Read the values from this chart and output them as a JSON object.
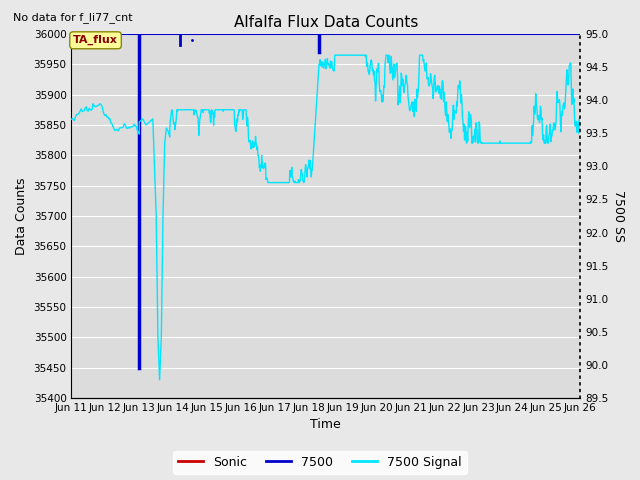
{
  "title": "Alfalfa Flux Data Counts",
  "subtitle": "No data for f_li77_cnt",
  "xlabel": "Time",
  "ylabel": "Data Counts",
  "ylabel_right": "7500 SS",
  "annotation": "TA_flux",
  "ylim": [
    35400,
    36000
  ],
  "ylim_right": [
    89.5,
    95.0
  ],
  "bg_color": "#e8e8e8",
  "plot_bg_color": "#dcdcdc",
  "grid_color": "#ffffff",
  "line_7500_color": "#0000cc",
  "line_signal_color": "#00e5ff",
  "line_sonic_color": "#cc0000",
  "x_tick_labels": [
    "Jun 11",
    "Jun 12",
    "Jun 13",
    "Jun 14",
    "Jun 15",
    "Jun 16",
    "Jun 17",
    "Jun 18",
    "Jun 19",
    "Jun 20",
    "Jun 21",
    "Jun 22",
    "Jun 23",
    "Jun 24",
    "Jun 25",
    "Jun 26"
  ],
  "x_tick_positions": [
    0,
    1,
    2,
    3,
    4,
    5,
    6,
    7,
    8,
    9,
    10,
    11,
    12,
    13,
    14,
    15
  ],
  "yticks_left": [
    35400,
    35450,
    35500,
    35550,
    35600,
    35650,
    35700,
    35750,
    35800,
    35850,
    35900,
    35950,
    36000
  ],
  "yticks_right": [
    89.5,
    90.0,
    90.5,
    91.0,
    91.5,
    92.0,
    92.5,
    93.0,
    93.5,
    94.0,
    94.5,
    95.0
  ]
}
